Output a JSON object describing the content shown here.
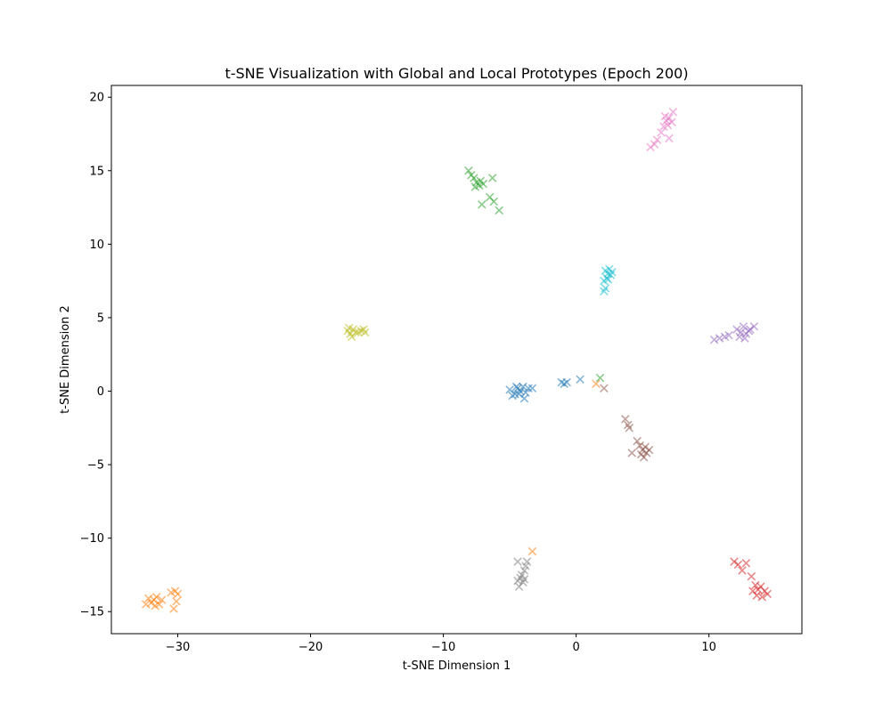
{
  "chart_data": {
    "type": "scatter",
    "title": "t-SNE Visualization with Global and Local Prototypes (Epoch 200)",
    "xlabel": "t-SNE Dimension 1",
    "ylabel": "t-SNE Dimension 2",
    "xlim": [
      -35.0,
      17.0
    ],
    "ylim": [
      -16.5,
      20.8
    ],
    "xticks": [
      -30,
      -20,
      -10,
      0,
      10
    ],
    "xtick_labels": [
      "−30",
      "−20",
      "−10",
      "0",
      "10"
    ],
    "yticks": [
      -15,
      -10,
      -5,
      0,
      5,
      10,
      15,
      20
    ],
    "ytick_labels": [
      "−15",
      "−10",
      "−5",
      "0",
      "5",
      "10",
      "15",
      "20"
    ],
    "grid": false,
    "marker": "x",
    "series": [
      {
        "color": "#1f77b4",
        "points": [
          [
            -5.0,
            0.1
          ],
          [
            -4.6,
            -0.2
          ],
          [
            -4.4,
            0.2
          ],
          [
            -4.2,
            0.0
          ],
          [
            -4.0,
            0.3
          ],
          [
            -3.8,
            -0.1
          ],
          [
            -3.6,
            0.2
          ],
          [
            -4.8,
            -0.3
          ],
          [
            -3.9,
            -0.5
          ],
          [
            -4.3,
            -0.2
          ],
          [
            -3.3,
            0.2
          ],
          [
            -4.5,
            0.3
          ],
          [
            -1.1,
            0.6
          ],
          [
            -0.9,
            0.5
          ],
          [
            -0.7,
            0.6
          ],
          [
            0.3,
            0.8
          ]
        ]
      },
      {
        "color": "#ff7f0e",
        "points": [
          [
            -32.2,
            -14.1
          ],
          [
            -32.0,
            -14.4
          ],
          [
            -31.8,
            -14.2
          ],
          [
            -31.6,
            -14.0
          ],
          [
            -31.4,
            -14.5
          ],
          [
            -31.2,
            -14.2
          ],
          [
            -31.7,
            -14.6
          ],
          [
            -32.4,
            -14.5
          ],
          [
            -30.5,
            -13.7
          ],
          [
            -30.2,
            -13.6
          ],
          [
            -30.0,
            -13.8
          ],
          [
            -30.3,
            -14.8
          ],
          [
            -30.1,
            -14.3
          ],
          [
            -3.3,
            -10.9
          ],
          [
            1.5,
            0.5
          ]
        ]
      },
      {
        "color": "#2ca02c",
        "points": [
          [
            -8.1,
            15.0
          ],
          [
            -7.9,
            14.7
          ],
          [
            -7.7,
            14.5
          ],
          [
            -7.5,
            14.2
          ],
          [
            -7.3,
            14.0
          ],
          [
            -7.2,
            14.3
          ],
          [
            -7.0,
            14.1
          ],
          [
            -7.6,
            13.9
          ],
          [
            -6.3,
            14.5
          ],
          [
            -6.5,
            13.2
          ],
          [
            -6.2,
            12.9
          ],
          [
            -7.1,
            12.7
          ],
          [
            -5.8,
            12.3
          ],
          [
            1.8,
            0.9
          ]
        ]
      },
      {
        "color": "#d62728",
        "points": [
          [
            11.9,
            -11.6
          ],
          [
            12.2,
            -11.8
          ],
          [
            12.5,
            -12.2
          ],
          [
            12.8,
            -11.7
          ],
          [
            13.2,
            -12.6
          ],
          [
            13.5,
            -13.2
          ],
          [
            13.7,
            -13.5
          ],
          [
            13.9,
            -13.3
          ],
          [
            14.2,
            -13.6
          ],
          [
            13.6,
            -13.9
          ],
          [
            14.0,
            -14.0
          ],
          [
            13.3,
            -13.6
          ],
          [
            14.4,
            -13.8
          ]
        ]
      },
      {
        "color": "#9467bd",
        "points": [
          [
            10.4,
            3.5
          ],
          [
            10.8,
            3.6
          ],
          [
            11.2,
            3.7
          ],
          [
            11.5,
            3.8
          ],
          [
            12.1,
            4.2
          ],
          [
            12.4,
            4.0
          ],
          [
            12.6,
            4.4
          ],
          [
            12.8,
            3.9
          ],
          [
            13.1,
            4.2
          ],
          [
            12.3,
            3.7
          ],
          [
            13.4,
            4.4
          ],
          [
            12.7,
            3.6
          ],
          [
            13.0,
            4.1
          ]
        ]
      },
      {
        "color": "#8c564b",
        "points": [
          [
            3.7,
            -1.9
          ],
          [
            3.9,
            -2.3
          ],
          [
            4.0,
            -2.5
          ],
          [
            4.6,
            -3.4
          ],
          [
            4.8,
            -3.7
          ],
          [
            5.0,
            -4.0
          ],
          [
            5.2,
            -3.8
          ],
          [
            4.9,
            -4.3
          ],
          [
            5.3,
            -4.2
          ],
          [
            5.5,
            -4.0
          ],
          [
            4.2,
            -4.2
          ],
          [
            5.1,
            -4.5
          ],
          [
            2.1,
            0.2
          ]
        ]
      },
      {
        "color": "#e377c2",
        "points": [
          [
            5.9,
            16.8
          ],
          [
            6.1,
            17.1
          ],
          [
            6.4,
            17.6
          ],
          [
            6.6,
            18.0
          ],
          [
            6.8,
            18.4
          ],
          [
            7.0,
            18.6
          ],
          [
            6.7,
            18.7
          ],
          [
            7.2,
            18.3
          ],
          [
            7.3,
            19.0
          ],
          [
            7.0,
            17.2
          ],
          [
            6.9,
            18.1
          ],
          [
            5.6,
            16.6
          ]
        ]
      },
      {
        "color": "#7f7f7f",
        "points": [
          [
            -4.4,
            -11.6
          ],
          [
            -4.2,
            -12.7
          ],
          [
            -4.0,
            -13.0
          ],
          [
            -4.3,
            -13.3
          ],
          [
            -3.9,
            -12.8
          ],
          [
            -3.8,
            -11.9
          ],
          [
            -3.7,
            -11.6
          ],
          [
            -4.1,
            -12.5
          ],
          [
            -4.4,
            -12.9
          ],
          [
            -3.9,
            -12.2
          ]
        ]
      },
      {
        "color": "#bcbd22",
        "points": [
          [
            -17.2,
            4.1
          ],
          [
            -17.0,
            3.9
          ],
          [
            -16.8,
            4.2
          ],
          [
            -16.6,
            4.0
          ],
          [
            -16.9,
            3.7
          ],
          [
            -17.1,
            4.3
          ],
          [
            -16.4,
            4.0
          ],
          [
            -16.2,
            4.1
          ],
          [
            -16.0,
            4.2
          ],
          [
            -15.9,
            4.0
          ]
        ]
      },
      {
        "color": "#17becf",
        "points": [
          [
            2.2,
            8.2
          ],
          [
            2.4,
            8.0
          ],
          [
            2.6,
            7.9
          ],
          [
            2.3,
            7.7
          ],
          [
            2.5,
            8.3
          ],
          [
            2.1,
            7.5
          ],
          [
            2.2,
            7.0
          ],
          [
            2.1,
            6.8
          ],
          [
            2.7,
            8.1
          ],
          [
            2.4,
            7.6
          ]
        ]
      }
    ]
  }
}
